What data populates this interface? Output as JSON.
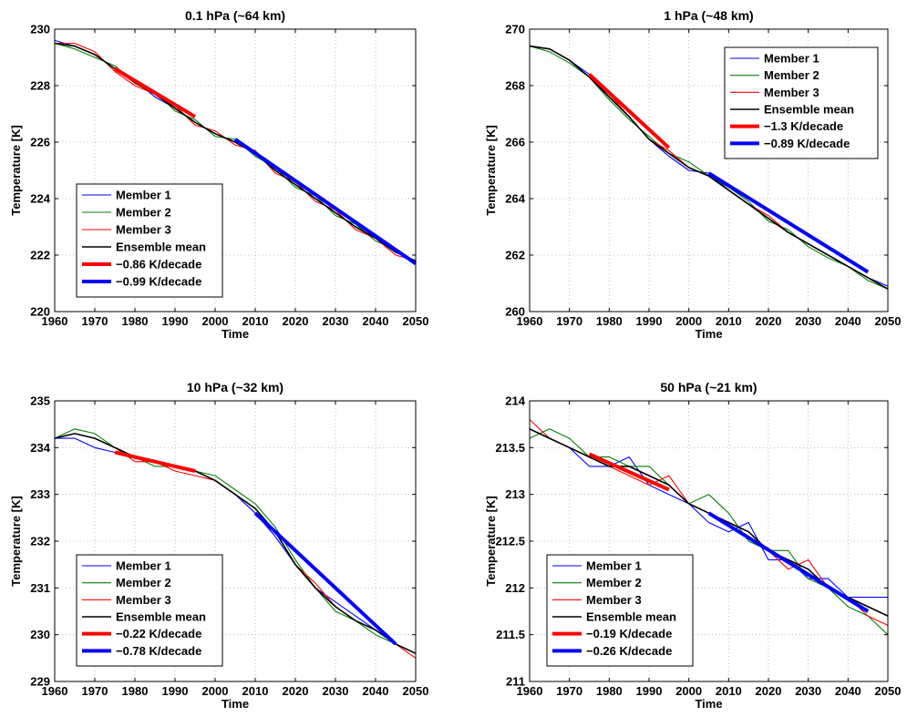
{
  "chart_data": [
    {
      "type": "line",
      "title": "0.1 hPa (~64 km)",
      "xlabel": "Time",
      "ylabel": "Temperature [K]",
      "xlim": [
        1960,
        2050
      ],
      "ylim": [
        220,
        230
      ],
      "xticks": [
        "1960",
        "1970",
        "1980",
        "1990",
        "2000",
        "2010",
        "2020",
        "2030",
        "2040",
        "2050"
      ],
      "yticks": [
        "220",
        "222",
        "224",
        "226",
        "228",
        "230"
      ],
      "grid": true,
      "legend_placement": "lower-left",
      "series": [
        {
          "name": "Member 1",
          "color": "#0000ff",
          "x": [
            1960,
            1965,
            1970,
            1975,
            1980,
            1985,
            1990,
            1995,
            2000,
            2005,
            2010,
            2015,
            2020,
            2025,
            2030,
            2035,
            2040,
            2045,
            2050
          ],
          "y": [
            229.6,
            229.4,
            229.1,
            228.6,
            228.2,
            227.6,
            227.2,
            226.7,
            226.3,
            226.0,
            225.6,
            225.0,
            224.5,
            224.0,
            223.5,
            223.0,
            222.6,
            222.1,
            221.8
          ]
        },
        {
          "name": "Member 2",
          "color": "#008000",
          "x": [
            1960,
            1965,
            1970,
            1975,
            1980,
            1985,
            1990,
            1995,
            2000,
            2005,
            2010,
            2015,
            2020,
            2025,
            2030,
            2035,
            2040,
            2045,
            2050
          ],
          "y": [
            229.5,
            229.3,
            229.0,
            228.7,
            228.1,
            227.8,
            227.1,
            226.8,
            226.2,
            226.1,
            225.5,
            225.1,
            224.4,
            224.1,
            223.4,
            223.1,
            222.5,
            222.2,
            221.7
          ]
        },
        {
          "name": "Member 3",
          "color": "#ff0000",
          "x": [
            1960,
            1965,
            1970,
            1975,
            1980,
            1985,
            1990,
            1995,
            2000,
            2005,
            2010,
            2015,
            2020,
            2025,
            2030,
            2035,
            2040,
            2045,
            2050
          ],
          "y": [
            229.5,
            229.5,
            229.2,
            228.5,
            228.0,
            227.7,
            227.3,
            226.6,
            226.4,
            225.9,
            225.7,
            224.9,
            224.6,
            223.9,
            223.6,
            222.9,
            222.6,
            222.0,
            221.8
          ]
        },
        {
          "name": "Ensemble mean",
          "color": "#000000",
          "x": [
            1960,
            1965,
            1970,
            1975,
            1980,
            1985,
            1990,
            1995,
            2000,
            2005,
            2010,
            2015,
            2020,
            2025,
            2030,
            2035,
            2040,
            2045,
            2050
          ],
          "y": [
            229.5,
            229.4,
            229.1,
            228.6,
            228.1,
            227.7,
            227.2,
            226.7,
            226.3,
            226.0,
            225.6,
            225.0,
            224.5,
            224.0,
            223.5,
            223.0,
            222.6,
            222.1,
            221.8
          ]
        },
        {
          "name": "−0.86 K/decade",
          "color": "#ff0000",
          "trend": true,
          "x": [
            1975,
            1995
          ],
          "y": [
            228.6,
            226.9
          ]
        },
        {
          "name": "−0.99 K/decade",
          "color": "#0000ff",
          "trend": true,
          "x": [
            2005,
            2050
          ],
          "y": [
            226.1,
            221.7
          ]
        }
      ]
    },
    {
      "type": "line",
      "title": "1 hPa (~48 km)",
      "xlabel": "Time",
      "ylabel": "Temperature [K]",
      "xlim": [
        1960,
        2050
      ],
      "ylim": [
        260,
        270
      ],
      "xticks": [
        "1960",
        "1970",
        "1980",
        "1990",
        "2000",
        "2010",
        "2020",
        "2030",
        "2040",
        "2050"
      ],
      "yticks": [
        "260",
        "262",
        "264",
        "266",
        "268",
        "270"
      ],
      "grid": true,
      "legend_placement": "upper-right",
      "series": [
        {
          "name": "Member 1",
          "color": "#0000ff",
          "x": [
            1960,
            1965,
            1970,
            1975,
            1980,
            1985,
            1990,
            1995,
            2000,
            2005,
            2010,
            2015,
            2020,
            2025,
            2030,
            2035,
            2040,
            2045,
            2050
          ],
          "y": [
            269.4,
            269.3,
            268.9,
            268.4,
            267.6,
            266.9,
            266.1,
            265.5,
            265.0,
            264.9,
            264.3,
            263.8,
            263.3,
            262.8,
            262.4,
            262.0,
            261.6,
            261.2,
            260.9
          ]
        },
        {
          "name": "Member 2",
          "color": "#008000",
          "x": [
            1960,
            1965,
            1970,
            1975,
            1980,
            1985,
            1990,
            1995,
            2000,
            2005,
            2010,
            2015,
            2020,
            2025,
            2030,
            2035,
            2040,
            2045,
            2050
          ],
          "y": [
            269.4,
            269.2,
            268.8,
            268.3,
            267.5,
            266.8,
            266.2,
            265.6,
            265.3,
            264.8,
            264.4,
            263.9,
            263.2,
            262.9,
            262.3,
            261.9,
            261.6,
            261.1,
            260.8
          ]
        },
        {
          "name": "Member 3",
          "color": "#ff0000",
          "x": [
            1960,
            1965,
            1970,
            1975,
            1980,
            1985,
            1990,
            1995,
            2000,
            2005,
            2010,
            2015,
            2020,
            2025,
            2030,
            2035,
            2040,
            2045,
            2050
          ],
          "y": [
            269.4,
            269.3,
            268.9,
            268.3,
            267.7,
            266.9,
            266.1,
            265.7,
            265.1,
            264.8,
            264.3,
            263.8,
            263.4,
            262.8,
            262.4,
            262.0,
            261.6,
            261.2,
            260.8
          ]
        },
        {
          "name": "Ensemble mean",
          "color": "#000000",
          "x": [
            1960,
            1965,
            1970,
            1975,
            1980,
            1985,
            1990,
            1995,
            2000,
            2005,
            2010,
            2015,
            2020,
            2025,
            2030,
            2035,
            2040,
            2045,
            2050
          ],
          "y": [
            269.4,
            269.3,
            268.9,
            268.3,
            267.6,
            266.9,
            266.1,
            265.6,
            265.1,
            264.8,
            264.3,
            263.8,
            263.3,
            262.8,
            262.4,
            262.0,
            261.6,
            261.2,
            260.8
          ]
        },
        {
          "name": "−1.3 K/decade",
          "color": "#ff0000",
          "trend": true,
          "x": [
            1975,
            1995
          ],
          "y": [
            268.4,
            265.8
          ]
        },
        {
          "name": "−0.89 K/decade",
          "color": "#0000ff",
          "trend": true,
          "x": [
            2005,
            2045
          ],
          "y": [
            264.9,
            261.4
          ]
        }
      ]
    },
    {
      "type": "line",
      "title": "10 hPa (~32 km)",
      "xlabel": "Time",
      "ylabel": "Temperature [K]",
      "xlim": [
        1960,
        2050
      ],
      "ylim": [
        229,
        235
      ],
      "xticks": [
        "1960",
        "1970",
        "1980",
        "1990",
        "2000",
        "2010",
        "2020",
        "2030",
        "2040",
        "2050"
      ],
      "yticks": [
        "229",
        "230",
        "231",
        "232",
        "233",
        "234",
        "235"
      ],
      "grid": true,
      "legend_placement": "lower-left",
      "series": [
        {
          "name": "Member 1",
          "color": "#0000ff",
          "x": [
            1960,
            1965,
            1970,
            1975,
            1980,
            1985,
            1990,
            1995,
            2000,
            2005,
            2010,
            2015,
            2020,
            2025,
            2030,
            2035,
            2040,
            2045,
            2050
          ],
          "y": [
            234.2,
            234.2,
            234.0,
            233.9,
            233.8,
            233.7,
            233.6,
            233.5,
            233.3,
            233.0,
            232.6,
            232.1,
            231.5,
            231.0,
            230.7,
            230.4,
            230.1,
            229.8,
            229.6
          ]
        },
        {
          "name": "Member 2",
          "color": "#008000",
          "x": [
            1960,
            1965,
            1970,
            1975,
            1980,
            1985,
            1990,
            1995,
            2000,
            2005,
            2010,
            2015,
            2020,
            2025,
            2030,
            2035,
            2040,
            2045,
            2050
          ],
          "y": [
            234.2,
            234.4,
            234.3,
            234.0,
            233.8,
            233.6,
            233.6,
            233.5,
            233.4,
            233.1,
            232.8,
            232.3,
            231.6,
            231.0,
            230.5,
            230.3,
            230.0,
            229.8,
            229.6
          ]
        },
        {
          "name": "Member 3",
          "color": "#ff0000",
          "x": [
            1960,
            1965,
            1970,
            1975,
            1980,
            1985,
            1990,
            1995,
            2000,
            2005,
            2010,
            2015,
            2020,
            2025,
            2030,
            2035,
            2040,
            2045,
            2050
          ],
          "y": [
            234.2,
            234.3,
            234.2,
            234.0,
            233.7,
            233.7,
            233.5,
            233.4,
            233.3,
            233.0,
            232.7,
            232.2,
            231.5,
            231.1,
            230.6,
            230.3,
            230.1,
            229.8,
            229.5
          ]
        },
        {
          "name": "Ensemble mean",
          "color": "#000000",
          "x": [
            1960,
            1965,
            1970,
            1975,
            1980,
            1985,
            1990,
            1995,
            2000,
            2005,
            2010,
            2015,
            2020,
            2025,
            2030,
            2035,
            2040,
            2045,
            2050
          ],
          "y": [
            234.2,
            234.3,
            234.2,
            234.0,
            233.8,
            233.7,
            233.6,
            233.5,
            233.3,
            233.0,
            232.7,
            232.2,
            231.5,
            231.0,
            230.6,
            230.3,
            230.1,
            229.8,
            229.6
          ]
        },
        {
          "name": "−0.22 K/decade",
          "color": "#ff0000",
          "trend": true,
          "x": [
            1975,
            1995
          ],
          "y": [
            233.9,
            233.5
          ]
        },
        {
          "name": "−0.78 K/decade",
          "color": "#0000ff",
          "trend": true,
          "x": [
            2010,
            2045
          ],
          "y": [
            232.6,
            229.8
          ]
        }
      ]
    },
    {
      "type": "line",
      "title": "50 hPa (~21 km)",
      "xlabel": "Time",
      "ylabel": "Temperature [K]",
      "xlim": [
        1960,
        2050
      ],
      "ylim": [
        211,
        214
      ],
      "xticks": [
        "1960",
        "1970",
        "1980",
        "1990",
        "2000",
        "2010",
        "2020",
        "2030",
        "2040",
        "2050"
      ],
      "yticks": [
        "211",
        "211.5",
        "212",
        "212.5",
        "213",
        "213.5",
        "214"
      ],
      "grid": true,
      "legend_placement": "lower-left",
      "series": [
        {
          "name": "Member 1",
          "color": "#0000ff",
          "x": [
            1960,
            1965,
            1970,
            1975,
            1980,
            1985,
            1990,
            1995,
            2000,
            2005,
            2010,
            2015,
            2020,
            2025,
            2030,
            2035,
            2040,
            2045,
            2050
          ],
          "y": [
            213.7,
            213.6,
            213.5,
            213.3,
            213.3,
            213.4,
            213.1,
            213.0,
            212.9,
            212.7,
            212.6,
            212.7,
            212.3,
            212.3,
            212.1,
            212.1,
            211.9,
            211.9,
            211.9
          ]
        },
        {
          "name": "Member 2",
          "color": "#008000",
          "x": [
            1960,
            1965,
            1970,
            1975,
            1980,
            1985,
            1990,
            1995,
            2000,
            2005,
            2010,
            2015,
            2020,
            2025,
            2030,
            2035,
            2040,
            2045,
            2050
          ],
          "y": [
            213.6,
            213.7,
            213.6,
            213.4,
            213.4,
            213.3,
            213.3,
            213.1,
            212.9,
            213.0,
            212.8,
            212.5,
            212.4,
            212.4,
            212.1,
            212.0,
            211.8,
            211.7,
            211.5
          ]
        },
        {
          "name": "Member 3",
          "color": "#ff0000",
          "x": [
            1960,
            1965,
            1970,
            1975,
            1980,
            1985,
            1990,
            1995,
            2000,
            2005,
            2010,
            2015,
            2020,
            2025,
            2030,
            2035,
            2040,
            2045,
            2050
          ],
          "y": [
            213.8,
            213.6,
            213.5,
            213.4,
            213.3,
            213.2,
            213.1,
            213.2,
            212.9,
            212.8,
            212.7,
            212.6,
            212.4,
            212.2,
            212.3,
            212.0,
            211.9,
            211.7,
            211.6
          ]
        },
        {
          "name": "Ensemble mean",
          "color": "#000000",
          "x": [
            1960,
            1965,
            1970,
            1975,
            1980,
            1985,
            1990,
            1995,
            2000,
            2005,
            2010,
            2015,
            2020,
            2025,
            2030,
            2035,
            2040,
            2045,
            2050
          ],
          "y": [
            213.7,
            213.6,
            213.5,
            213.4,
            213.3,
            213.3,
            213.2,
            213.1,
            212.9,
            212.8,
            212.7,
            212.6,
            212.4,
            212.3,
            212.2,
            212.0,
            211.9,
            211.8,
            211.7
          ]
        },
        {
          "name": "−0.19 K/decade",
          "color": "#ff0000",
          "trend": true,
          "x": [
            1975,
            1995
          ],
          "y": [
            213.43,
            213.05
          ]
        },
        {
          "name": "−0.26 K/decade",
          "color": "#0000ff",
          "trend": true,
          "x": [
            2005,
            2045
          ],
          "y": [
            212.8,
            211.75
          ]
        }
      ]
    }
  ]
}
